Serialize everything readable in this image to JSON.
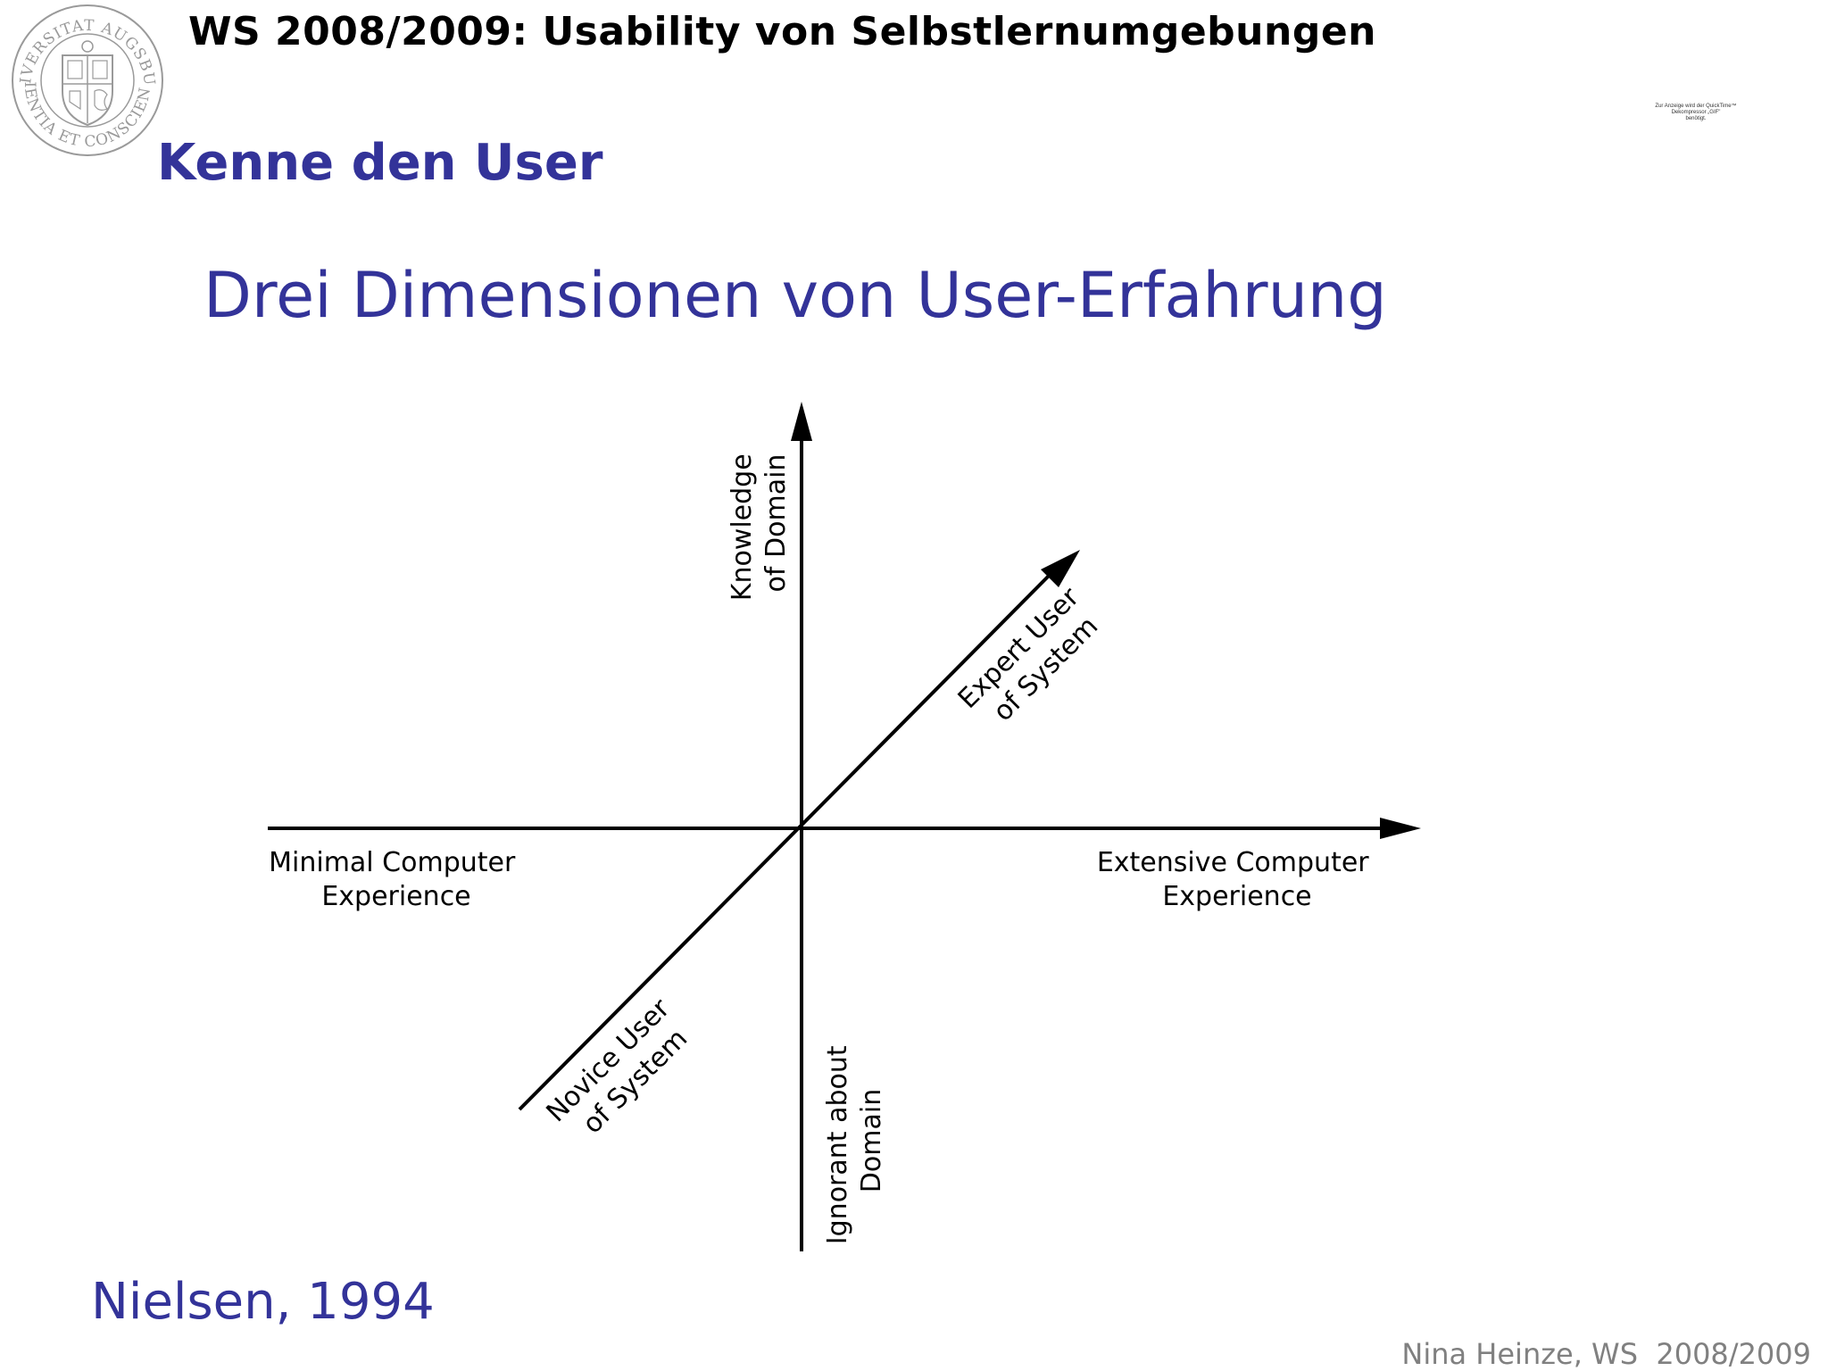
{
  "colors": {
    "accent": "#333399",
    "seal": "#9a9a9a",
    "footer": "#808080"
  },
  "header": {
    "course_title": "WS 2008/2009: Usability von Selbstlernumgebungen",
    "section_title": "Kenne den User",
    "quicktime_note": [
      "Zur Anzeige wird der QuickTime™",
      "Dekompressor „GIF\"",
      "benötigt."
    ],
    "seal_icon": "university-seal-icon",
    "seal_text_top": "UNIVERSITAT AUGSBURG",
    "seal_text_bottom": "SCIENTIA ET CONSCIENTIA"
  },
  "slide": {
    "heading": "Drei Dimensionen von User-Erfahrung",
    "citation": "Nielsen, 1994"
  },
  "diagram": {
    "labels": {
      "minimal_computer": [
        "Minimal Computer",
        "Experience"
      ],
      "extensive_computer": [
        "Extensive Computer",
        "Experience"
      ],
      "knowledge_domain": [
        "Knowledge",
        "of Domain"
      ],
      "ignorant_domain": [
        "Ignorant about",
        "Domain"
      ],
      "expert_user": [
        "Expert User",
        "of System"
      ],
      "novice_user": [
        "Novice User",
        "of System"
      ]
    }
  },
  "footer": {
    "author": "Nina Heinze, WS  2008/2009"
  }
}
